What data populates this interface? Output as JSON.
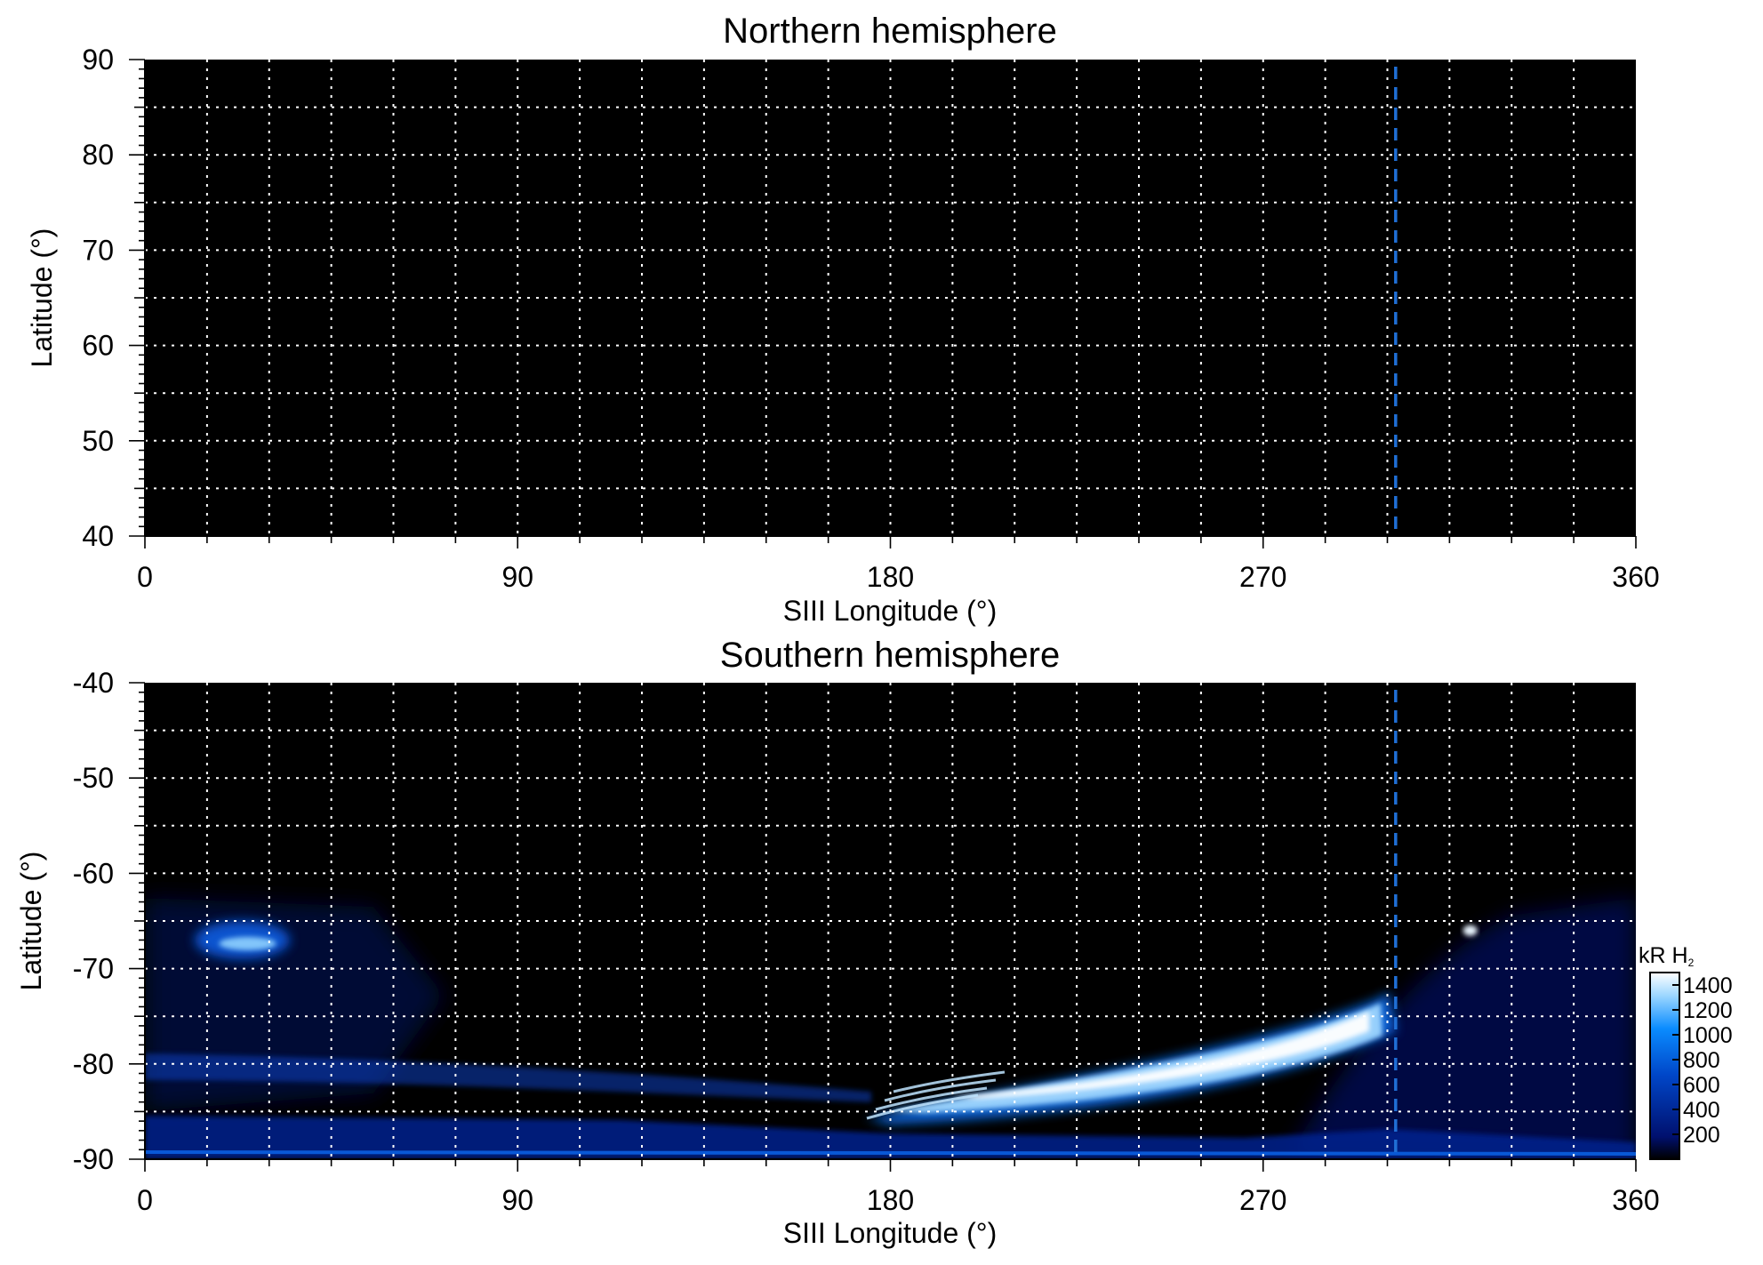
{
  "chart_data": [
    {
      "type": "heatmap",
      "title": "Northern hemisphere",
      "xlabel": "SIII Longitude (°)",
      "ylabel": "Latitude (°)",
      "xlim": [
        0,
        360
      ],
      "ylim": [
        40,
        90
      ],
      "x_ticks": [
        "0",
        "90",
        "180",
        "270",
        "360"
      ],
      "y_ticks": [
        "90",
        "80",
        "70",
        "60",
        "50",
        "40"
      ],
      "grid": true,
      "reference_line": {
        "x": 302,
        "style": "dashed",
        "color": "#1f6fd6"
      },
      "features": []
    },
    {
      "type": "heatmap",
      "title": "Southern hemisphere",
      "xlabel": "SIII Longitude (°)",
      "ylabel": "Latitude (°)",
      "xlim": [
        0,
        360
      ],
      "ylim": [
        -90,
        -40
      ],
      "x_ticks": [
        "0",
        "90",
        "180",
        "270",
        "360"
      ],
      "y_ticks": [
        "-40",
        "-50",
        "-60",
        "-70",
        "-80",
        "-90"
      ],
      "grid": true,
      "reference_line": {
        "x": 302,
        "style": "dashed",
        "color": "#1f6fd6"
      },
      "features": [
        {
          "name": "main-oval-arc",
          "lon_range": [
            175,
            298
          ],
          "lat_range": [
            -86,
            -76
          ],
          "peak_kR": 1400
        },
        {
          "name": "spot-low-longitude",
          "lon_range": [
            12,
            35
          ],
          "lat_range": [
            -69,
            -65
          ],
          "peak_kR": 900
        },
        {
          "name": "spot-high-longitude",
          "lon": 320,
          "lat": -66,
          "peak_kR": 1400
        },
        {
          "name": "polar-band",
          "lon_range": [
            0,
            360
          ],
          "lat_range": [
            -91,
            -86
          ],
          "peak_kR": 700
        }
      ],
      "colorbar": {
        "label": "kR H",
        "label_subscript": "2",
        "ticks": [
          "1400",
          "1200",
          "1000",
          "800",
          "600",
          "400",
          "200"
        ],
        "range": [
          0,
          1500
        ]
      }
    }
  ],
  "colors": {
    "background": "#000000",
    "grid": "#ffffff",
    "reference_line": "#1f6fd6",
    "emission_low": "#00106e",
    "emission_mid": "#0a6ff0",
    "emission_high": "#ffffff"
  }
}
